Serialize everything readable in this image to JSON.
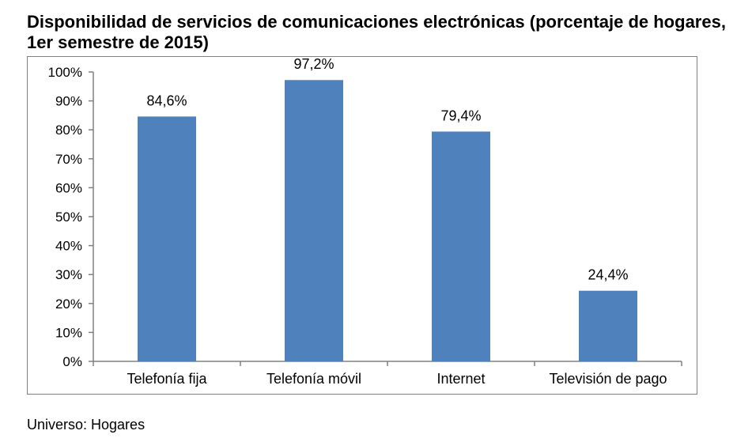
{
  "chart_data": {
    "type": "bar",
    "title": "Disponibilidad de servicios de comunicaciones electrónicas (porcentaje de hogares, 1er semestre de 2015)",
    "xlabel": "",
    "ylabel": "",
    "categories": [
      "Telefonía fija",
      "Telefonía móvil",
      "Internet",
      "Televisión de pago"
    ],
    "values": [
      84.6,
      97.2,
      79.4,
      24.4
    ],
    "data_labels": [
      "84,6%",
      "97,2%",
      "79,4%",
      "24,4%"
    ],
    "ylim": [
      0,
      100
    ],
    "y_ticks": [
      {
        "value": 0,
        "label": "0%"
      },
      {
        "value": 10,
        "label": "10%"
      },
      {
        "value": 20,
        "label": "20%"
      },
      {
        "value": 30,
        "label": "30%"
      },
      {
        "value": 40,
        "label": "40%"
      },
      {
        "value": 50,
        "label": "50%"
      },
      {
        "value": 60,
        "label": "60%"
      },
      {
        "value": 70,
        "label": "70%"
      },
      {
        "value": 80,
        "label": "80%"
      },
      {
        "value": 90,
        "label": "90%"
      },
      {
        "value": 100,
        "label": "100%"
      }
    ],
    "grid": false,
    "legend": "none",
    "bar_color": "#4F81BD"
  },
  "footnote": "Universo: Hogares"
}
